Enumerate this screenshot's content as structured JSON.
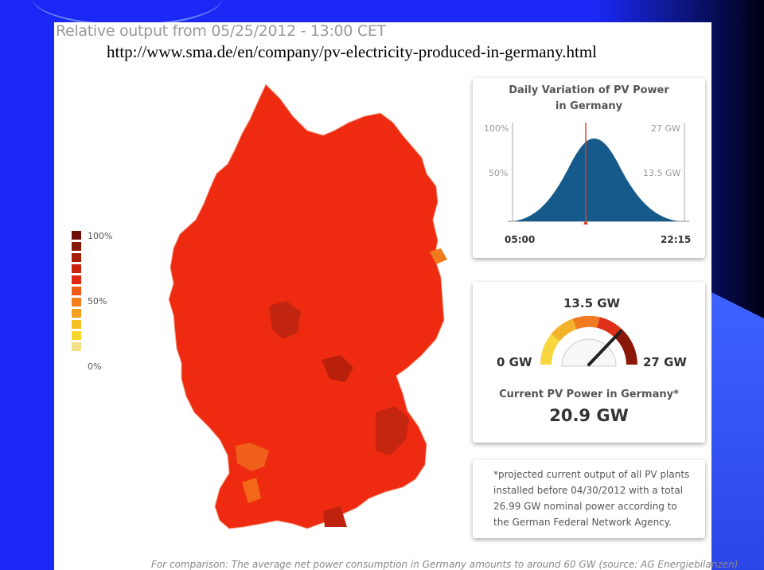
{
  "header": {
    "title": "Relative output from 05/25/2012 - 13:00 CET",
    "url": "http://www.sma.de/en/company/pv-electricity-produced-in-germany.html"
  },
  "legend": {
    "levels": [
      "#6e0f05",
      "#8a1808",
      "#a81e0a",
      "#c8220f",
      "#e0280f",
      "#ee5a18",
      "#f27e1c",
      "#f5a020",
      "#f6bf24",
      "#f8d62e",
      "#f5e08a"
    ],
    "labels": {
      "top": "100%",
      "mid": "50%",
      "bottom": "0%"
    }
  },
  "daily_panel": {
    "title_line1": "Daily Variation of PV Power",
    "title_line2": "in Germany",
    "left_100": "100%",
    "left_50": "50%",
    "right_27": "27 GW",
    "right_13": "13.5 GW",
    "start_time": "05:00",
    "end_time": "22:15",
    "curve_color": "#155a8a",
    "marker_color": "#e0402a"
  },
  "gauge_panel": {
    "top_label": "13.5 GW",
    "min_label": "0 GW",
    "max_label": "27 GW",
    "current_label": "Current PV Power in Germany*",
    "current_value": "20.9 GW"
  },
  "footnote": {
    "text": "*projected current output of all PV plants installed before 04/30/2012 with a total 26.99 GW nominal power according to the German Federal Network Agency."
  },
  "bottom_note": "For comparison: The average net power consumption in Germany amounts to around 60 GW (source: AG Energiebilanzen)"
}
